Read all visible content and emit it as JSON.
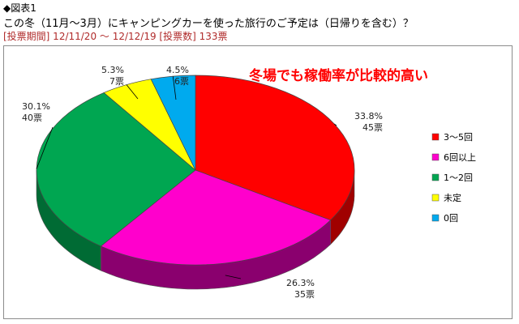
{
  "header": {
    "label": "◆図表1",
    "question": "この冬（11月～3月）にキャンピングカーを使った旅行のご予定は（日帰りを含む）？",
    "period": "[投票期間] 12/11/20 ～ 12/12/19 [投票数] 133票"
  },
  "chart_data": {
    "type": "pie",
    "title": "",
    "annotation": "冬場でも稼働率が比較的高い",
    "legend_position": "right",
    "categories": [
      "3～5回",
      "6回以上",
      "1～2回",
      "未定",
      "0回"
    ],
    "values": [
      45,
      35,
      40,
      7,
      6
    ],
    "percent_labels": [
      "33.8%",
      "26.3%",
      "30.1%",
      "5.3%",
      "4.5%"
    ],
    "count_labels": [
      "45票",
      "35票",
      "40票",
      "7票",
      "6票"
    ],
    "colors": [
      "#ff0000",
      "#ff00cc",
      "#00a651",
      "#ffff00",
      "#00aaee"
    ],
    "dark_colors": [
      "#a00000",
      "#8a006e",
      "#006b34",
      "#a8a800",
      "#006f9c"
    ]
  }
}
